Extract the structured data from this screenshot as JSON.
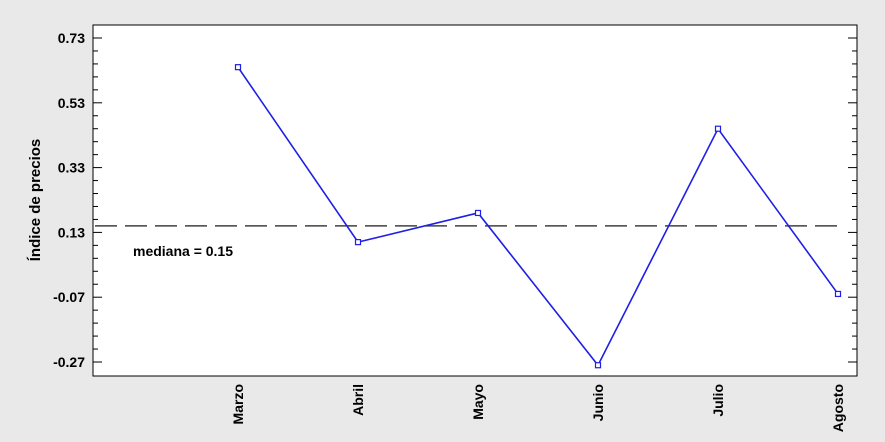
{
  "chart_data": {
    "type": "line",
    "title": "",
    "xlabel": "",
    "ylabel": "Índice de precios",
    "categories": [
      "Marzo",
      "Abril",
      "Mayo",
      "Junio",
      "Julio",
      "Agosto"
    ],
    "series": [
      {
        "values": [
          0.64,
          0.1,
          0.19,
          -0.28,
          0.45,
          -0.06
        ]
      }
    ],
    "yticks": [
      "0.73",
      "0.53",
      "0.33",
      "0.13",
      "-0.07",
      "-0.27"
    ],
    "ylim": [
      -0.3,
      0.75
    ],
    "reference_line": {
      "value": 0.15,
      "label": "mediana = 0.15",
      "style": "dashed"
    },
    "grid": false,
    "colors": {
      "series": "#1f1fe6",
      "reference": "#404040",
      "plot_bg": "#ffffff",
      "page_bg": "#e9e9e9"
    }
  }
}
